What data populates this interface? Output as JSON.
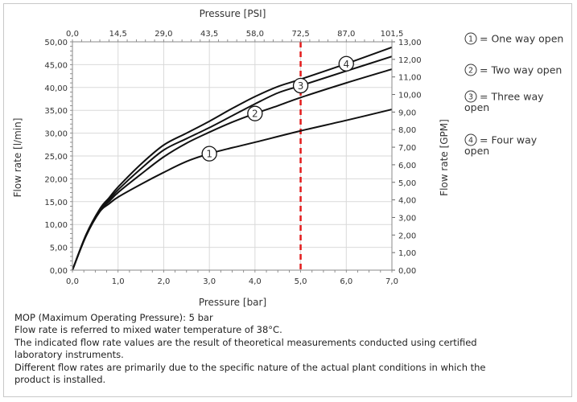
{
  "chart_data": {
    "type": "line",
    "title": "",
    "xlabel": "Pressure [bar]",
    "ylabel": "Flow rate [l/min]",
    "x2label": "Pressure [PSI]",
    "y2label": "Flow rate [GPM]",
    "xlim": [
      0,
      7
    ],
    "ylim": [
      0,
      50
    ],
    "y2lim": [
      0,
      13
    ],
    "grid": true,
    "legend_position": "right",
    "x_ticks": [
      "0,0",
      "1,0",
      "2,0",
      "3,0",
      "4,0",
      "5,0",
      "6,0",
      "7,0"
    ],
    "x2_ticks": [
      "0,0",
      "14,5",
      "29,0",
      "43,5",
      "58,0",
      "72,5",
      "87,0",
      "101,5"
    ],
    "y_ticks": [
      "0,00",
      "5,00",
      "10,00",
      "15,00",
      "20,00",
      "25,00",
      "30,00",
      "35,00",
      "40,00",
      "45,00",
      "50,00"
    ],
    "y2_ticks": [
      "0,00",
      "1,00",
      "2,00",
      "3,00",
      "4,00",
      "5,00",
      "6,00",
      "7,00",
      "8,00",
      "9,00",
      "10,00",
      "11,00",
      "12,00",
      "13,00"
    ],
    "reference_line": {
      "x": 5.0,
      "color": "#e41b1b",
      "style": "dashed"
    },
    "series": [
      {
        "marker": "1",
        "x": [
          0,
          0.3,
          0.6,
          0.8,
          1.0,
          1.5,
          2.0,
          2.5,
          3.0,
          3.5,
          4.0,
          5.0,
          6.0,
          7.0
        ],
        "values": [
          0,
          7.5,
          12.8,
          14.5,
          16.0,
          18.8,
          21.4,
          23.8,
          25.5,
          26.8,
          28.0,
          30.5,
          32.8,
          35.2
        ]
      },
      {
        "marker": "2",
        "x": [
          0,
          0.3,
          0.6,
          0.8,
          1.0,
          1.5,
          2.0,
          2.5,
          3.0,
          3.5,
          4.0,
          4.5,
          5.0,
          6.0,
          7.0
        ],
        "values": [
          0,
          7.6,
          13.0,
          15.0,
          17.0,
          21.0,
          24.8,
          27.8,
          30.2,
          32.4,
          34.3,
          36.0,
          37.8,
          41.0,
          44.0
        ]
      },
      {
        "marker": "3",
        "x": [
          0,
          0.3,
          0.6,
          0.8,
          1.0,
          1.5,
          2.0,
          2.5,
          3.0,
          3.5,
          4.0,
          4.5,
          5.0,
          6.0,
          7.0
        ],
        "values": [
          0,
          7.7,
          13.2,
          15.4,
          17.6,
          22.2,
          26.3,
          28.8,
          31.2,
          33.8,
          36.4,
          38.8,
          40.4,
          43.6,
          46.8
        ]
      },
      {
        "marker": "4",
        "x": [
          0,
          0.3,
          0.6,
          0.8,
          1.0,
          1.5,
          2.0,
          2.5,
          3.0,
          3.5,
          4.0,
          4.5,
          5.0,
          6.0,
          7.0
        ],
        "values": [
          0,
          7.8,
          13.4,
          15.8,
          18.2,
          23.2,
          27.4,
          30.0,
          32.6,
          35.4,
          38.0,
          40.2,
          41.8,
          45.2,
          48.8
        ]
      }
    ],
    "markers": [
      {
        "label": "1",
        "x": 3.0,
        "y": 25.5
      },
      {
        "label": "2",
        "x": 4.0,
        "y": 34.3
      },
      {
        "label": "3",
        "x": 5.0,
        "y": 40.4
      },
      {
        "label": "4",
        "x": 6.0,
        "y": 45.2
      }
    ],
    "legend": [
      {
        "marker": "1",
        "text": "= One way open"
      },
      {
        "marker": "2",
        "text": "= Two way open"
      },
      {
        "marker": "3",
        "text": "= Three way",
        "text2": "open"
      },
      {
        "marker": "4",
        "text": "= Four way",
        "text2": "open"
      }
    ]
  },
  "notes": [
    "MOP (Maximum Operating Pressure): 5 bar",
    "Flow rate is referred to mixed water temperature of 38°C.",
    "The indicated flow rate values are the result of theoretical measurements conducted using certified",
    "laboratory instruments.",
    "Different flow rates are primarily due to the specific nature of the actual plant conditions in which the",
    "product is installed."
  ]
}
